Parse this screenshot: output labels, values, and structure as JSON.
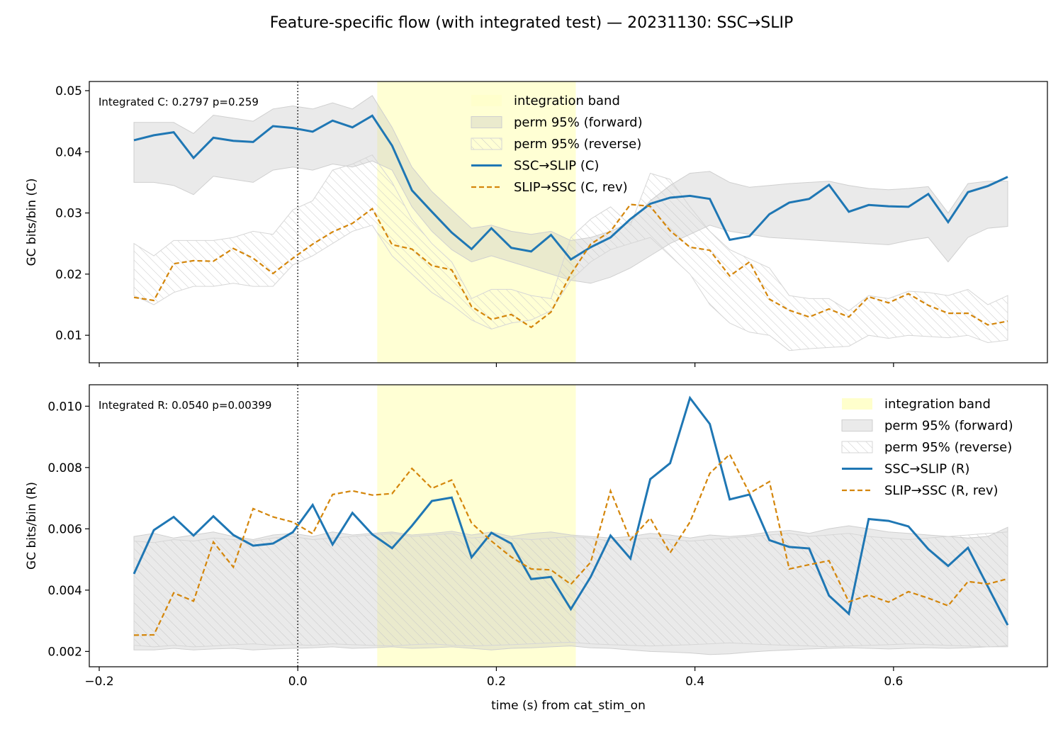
{
  "figure": {
    "title": "Feature-specific flow (with integrated test) — 20231130: SSC→SLIP",
    "xlabel": "time (s) from cat_stim_on"
  },
  "colors": {
    "forward": "#1f77b4",
    "reverse": "#d4860b",
    "band": "#ffffcc",
    "perm": "#d9d9d9"
  },
  "chart_data": [
    {
      "type": "line",
      "id": "top",
      "ylabel": "GC bits/bin (C)",
      "annotation": "Integrated C: 0.2797  p=0.259",
      "xlim": [
        -0.21,
        0.755
      ],
      "ylim": [
        0.0055,
        0.0515
      ],
      "xticks": [
        -0.2,
        0.0,
        0.2,
        0.4,
        0.6
      ],
      "xtick_labels_visible": false,
      "yticks": [
        0.01,
        0.02,
        0.03,
        0.04,
        0.05
      ],
      "ytick_labels": [
        "0.01",
        "0.02",
        "0.03",
        "0.04",
        "0.05"
      ],
      "vline_x": 0.0,
      "integration_band": [
        0.08,
        0.28
      ],
      "legend_position": "upper-center",
      "legend": [
        "integration band",
        "perm 95% (forward)",
        "perm 95% (reverse)",
        "SSC→SLIP (C)",
        "SLIP→SSC (C, rev)"
      ],
      "x": [
        -0.165,
        -0.145,
        -0.125,
        -0.105,
        -0.085,
        -0.065,
        -0.045,
        -0.025,
        -0.005,
        0.015,
        0.035,
        0.055,
        0.075,
        0.095,
        0.115,
        0.135,
        0.155,
        0.175,
        0.195,
        0.215,
        0.235,
        0.255,
        0.275,
        0.295,
        0.315,
        0.335,
        0.355,
        0.375,
        0.395,
        0.415,
        0.435,
        0.455,
        0.475,
        0.495,
        0.515,
        0.535,
        0.555,
        0.575,
        0.595,
        0.615,
        0.635,
        0.655,
        0.675,
        0.695,
        0.715
      ],
      "series": [
        {
          "name": "SSC→SLIP (C)",
          "style": "solid",
          "values": [
            0.0419,
            0.0427,
            0.0432,
            0.039,
            0.0423,
            0.0418,
            0.0416,
            0.0442,
            0.0439,
            0.0433,
            0.0451,
            0.044,
            0.0459,
            0.041,
            0.0337,
            0.0302,
            0.0268,
            0.0241,
            0.0275,
            0.0243,
            0.0237,
            0.0264,
            0.0224,
            0.0244,
            0.026,
            0.029,
            0.0315,
            0.0325,
            0.0328,
            0.0323,
            0.0256,
            0.0262,
            0.0298,
            0.0317,
            0.0323,
            0.0346,
            0.0302,
            0.0313,
            0.0311,
            0.031,
            0.0331,
            0.0285,
            0.0334,
            0.0344,
            0.0359
          ]
        },
        {
          "name": "SLIP→SSC (C, rev)",
          "style": "dashed",
          "values": [
            0.0162,
            0.0157,
            0.0217,
            0.0222,
            0.0221,
            0.0242,
            0.0226,
            0.0201,
            0.0226,
            0.0249,
            0.0269,
            0.0283,
            0.0307,
            0.0248,
            0.0241,
            0.0214,
            0.0207,
            0.0147,
            0.0126,
            0.0134,
            0.0113,
            0.0138,
            0.02,
            0.0249,
            0.027,
            0.0314,
            0.0311,
            0.0271,
            0.0244,
            0.0239,
            0.0197,
            0.022,
            0.0159,
            0.0141,
            0.013,
            0.0143,
            0.013,
            0.0163,
            0.0153,
            0.0168,
            0.0149,
            0.0136,
            0.0136,
            0.0117,
            0.0123
          ]
        }
      ],
      "perm_forward": {
        "lower": [
          0.035,
          0.035,
          0.0345,
          0.033,
          0.036,
          0.0355,
          0.035,
          0.037,
          0.0375,
          0.037,
          0.038,
          0.0375,
          0.0385,
          0.037,
          0.031,
          0.027,
          0.024,
          0.022,
          0.023,
          0.022,
          0.021,
          0.02,
          0.019,
          0.0185,
          0.0195,
          0.021,
          0.023,
          0.025,
          0.0265,
          0.028,
          0.027,
          0.0265,
          0.026,
          0.0258,
          0.0256,
          0.0254,
          0.0252,
          0.025,
          0.0248,
          0.0255,
          0.026,
          0.022,
          0.026,
          0.0275,
          0.0278
        ],
        "upper": [
          0.0448,
          0.0448,
          0.0448,
          0.043,
          0.046,
          0.0455,
          0.045,
          0.047,
          0.0475,
          0.047,
          0.048,
          0.047,
          0.0492,
          0.044,
          0.0375,
          0.0335,
          0.0305,
          0.0275,
          0.028,
          0.027,
          0.0265,
          0.027,
          0.0255,
          0.026,
          0.027,
          0.0285,
          0.032,
          0.0345,
          0.0365,
          0.0368,
          0.035,
          0.0342,
          0.0345,
          0.0348,
          0.035,
          0.0352,
          0.0345,
          0.034,
          0.0338,
          0.034,
          0.0343,
          0.03,
          0.0348,
          0.0352,
          0.0352
        ]
      },
      "perm_reverse": {
        "lower": [
          0.0165,
          0.015,
          0.017,
          0.018,
          0.018,
          0.0185,
          0.018,
          0.018,
          0.0215,
          0.023,
          0.025,
          0.027,
          0.028,
          0.023,
          0.02,
          0.017,
          0.015,
          0.0125,
          0.011,
          0.012,
          0.0125,
          0.014,
          0.019,
          0.022,
          0.024,
          0.025,
          0.026,
          0.023,
          0.02,
          0.015,
          0.012,
          0.0105,
          0.01,
          0.0075,
          0.0078,
          0.008,
          0.0082,
          0.01,
          0.0095,
          0.01,
          0.0098,
          0.0096,
          0.01,
          0.0088,
          0.0092
        ],
        "upper": [
          0.025,
          0.023,
          0.0255,
          0.0255,
          0.0255,
          0.026,
          0.027,
          0.0265,
          0.0305,
          0.032,
          0.037,
          0.038,
          0.0395,
          0.035,
          0.029,
          0.025,
          0.022,
          0.016,
          0.0175,
          0.0175,
          0.0165,
          0.016,
          0.026,
          0.029,
          0.031,
          0.028,
          0.0365,
          0.0355,
          0.031,
          0.027,
          0.024,
          0.0225,
          0.021,
          0.0165,
          0.016,
          0.016,
          0.014,
          0.0165,
          0.016,
          0.0172,
          0.017,
          0.0165,
          0.0175,
          0.015,
          0.0165
        ]
      }
    },
    {
      "type": "line",
      "id": "bottom",
      "ylabel": "GC bits/bin (R)",
      "annotation": "Integrated R: 0.0540  p=0.00399",
      "xlim": [
        -0.21,
        0.755
      ],
      "ylim": [
        0.0015,
        0.0107
      ],
      "xticks": [
        -0.2,
        0.0,
        0.2,
        0.4,
        0.6
      ],
      "xtick_labels": [
        "−0.2",
        "0.0",
        "0.2",
        "0.4",
        "0.6"
      ],
      "xtick_labels_visible": true,
      "yticks": [
        0.002,
        0.004,
        0.006,
        0.008,
        0.01
      ],
      "ytick_labels": [
        "0.002",
        "0.004",
        "0.006",
        "0.008",
        "0.010"
      ],
      "vline_x": 0.0,
      "integration_band": [
        0.08,
        0.28
      ],
      "legend_position": "upper-right",
      "legend": [
        "integration band",
        "perm 95% (forward)",
        "perm 95% (reverse)",
        "SSC→SLIP (R)",
        "SLIP→SSC (R, rev)"
      ],
      "x": [
        -0.165,
        -0.145,
        -0.125,
        -0.105,
        -0.085,
        -0.065,
        -0.045,
        -0.025,
        -0.005,
        0.015,
        0.035,
        0.055,
        0.075,
        0.095,
        0.115,
        0.135,
        0.155,
        0.175,
        0.195,
        0.215,
        0.235,
        0.255,
        0.275,
        0.295,
        0.315,
        0.335,
        0.355,
        0.375,
        0.395,
        0.415,
        0.435,
        0.455,
        0.475,
        0.495,
        0.515,
        0.535,
        0.555,
        0.575,
        0.595,
        0.615,
        0.635,
        0.655,
        0.675,
        0.695,
        0.715
      ],
      "series": [
        {
          "name": "SSC→SLIP (R)",
          "style": "solid",
          "values": [
            0.00453,
            0.00596,
            0.00639,
            0.00578,
            0.00641,
            0.0058,
            0.00545,
            0.00552,
            0.00589,
            0.00678,
            0.00549,
            0.00652,
            0.00582,
            0.00537,
            0.0061,
            0.00691,
            0.00702,
            0.00507,
            0.00587,
            0.00552,
            0.00436,
            0.00443,
            0.00338,
            0.00443,
            0.00578,
            0.00503,
            0.00762,
            0.00814,
            0.01027,
            0.00942,
            0.00696,
            0.00712,
            0.00563,
            0.00541,
            0.00536,
            0.00382,
            0.00323,
            0.00632,
            0.00626,
            0.00608,
            0.00534,
            0.00479,
            0.00538,
            0.00412,
            0.00286
          ]
        },
        {
          "name": "SLIP→SSC (R, rev)",
          "style": "dashed",
          "values": [
            0.00253,
            0.00254,
            0.00391,
            0.00364,
            0.00557,
            0.00475,
            0.00666,
            0.00639,
            0.00622,
            0.00584,
            0.00712,
            0.00724,
            0.0071,
            0.00715,
            0.00797,
            0.00732,
            0.00759,
            0.00619,
            0.0056,
            0.00508,
            0.00469,
            0.00466,
            0.00419,
            0.00491,
            0.00724,
            0.00564,
            0.00635,
            0.00522,
            0.00622,
            0.00781,
            0.00843,
            0.00716,
            0.00754,
            0.00469,
            0.00483,
            0.00496,
            0.00362,
            0.00384,
            0.00361,
            0.00395,
            0.00374,
            0.00349,
            0.00428,
            0.0042,
            0.00437
          ]
        }
      ],
      "perm_forward": {
        "lower": [
          0.00205,
          0.00205,
          0.0021,
          0.00205,
          0.00208,
          0.0021,
          0.00205,
          0.00208,
          0.0021,
          0.00212,
          0.00215,
          0.0021,
          0.00212,
          0.00215,
          0.0021,
          0.00212,
          0.00215,
          0.0021,
          0.00205,
          0.0021,
          0.00212,
          0.00215,
          0.00218,
          0.00212,
          0.0021,
          0.00205,
          0.002,
          0.00198,
          0.00195,
          0.0019,
          0.00192,
          0.00198,
          0.00202,
          0.00205,
          0.00208,
          0.0021,
          0.00212,
          0.0021,
          0.00208,
          0.0021,
          0.00212,
          0.0021,
          0.00212,
          0.00215,
          0.00218
        ],
        "upper": [
          0.00575,
          0.00585,
          0.0057,
          0.0058,
          0.0059,
          0.00575,
          0.00565,
          0.0058,
          0.00585,
          0.00575,
          0.0059,
          0.0058,
          0.00585,
          0.0059,
          0.0058,
          0.00585,
          0.00592,
          0.0058,
          0.0059,
          0.00575,
          0.00585,
          0.0059,
          0.0058,
          0.00575,
          0.0057,
          0.00575,
          0.00585,
          0.0058,
          0.0057,
          0.0058,
          0.00575,
          0.0058,
          0.0059,
          0.00595,
          0.00585,
          0.006,
          0.0061,
          0.006,
          0.0059,
          0.00585,
          0.0058,
          0.00575,
          0.0057,
          0.00575,
          0.00605
        ]
      },
      "perm_reverse": {
        "lower": [
          0.0022,
          0.00215,
          0.0022,
          0.00215,
          0.00218,
          0.00222,
          0.00225,
          0.0022,
          0.00222,
          0.0022,
          0.00225,
          0.00222,
          0.0022,
          0.00218,
          0.00222,
          0.00225,
          0.0022,
          0.00218,
          0.0022,
          0.00222,
          0.00225,
          0.00228,
          0.0023,
          0.00225,
          0.00222,
          0.0022,
          0.00218,
          0.0022,
          0.00222,
          0.00225,
          0.00228,
          0.00225,
          0.00222,
          0.0022,
          0.00218,
          0.00215,
          0.00218,
          0.0022,
          0.00222,
          0.00225,
          0.00222,
          0.0022,
          0.00218,
          0.00215,
          0.00215
        ],
        "upper": [
          0.0056,
          0.00555,
          0.00565,
          0.0056,
          0.0057,
          0.00565,
          0.0056,
          0.0057,
          0.00575,
          0.00565,
          0.0057,
          0.00575,
          0.0058,
          0.00585,
          0.00575,
          0.0058,
          0.00585,
          0.0057,
          0.00575,
          0.0057,
          0.00565,
          0.0057,
          0.00575,
          0.0057,
          0.0056,
          0.00565,
          0.0057,
          0.00565,
          0.0056,
          0.00565,
          0.0057,
          0.00575,
          0.0058,
          0.00585,
          0.00575,
          0.0058,
          0.00585,
          0.00575,
          0.0057,
          0.00565,
          0.0057,
          0.00575,
          0.0058,
          0.00585,
          0.0059
        ]
      }
    }
  ]
}
